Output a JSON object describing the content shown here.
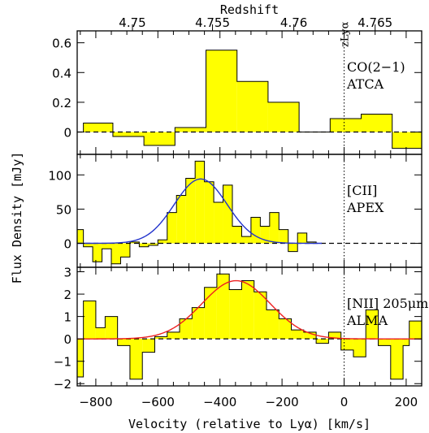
{
  "chart_data": {
    "type": "histogram-stack",
    "ylabel": "Flux Density [mJy]",
    "xlabel": "Velocity (relative to Lyα) [km/s]",
    "top_axis": {
      "label": "Redshift",
      "tick_labels": [
        "4.75",
        "4.755",
        "4.76",
        "4.765"
      ],
      "tick_velocity": [
        -682,
        -424,
        -162,
        100
      ],
      "marker_label": "zLyα",
      "marker_velocity": 0
    },
    "xlim": [
      -860,
      250
    ],
    "x_ticks": [
      -800,
      -600,
      -400,
      -200,
      0,
      200
    ],
    "x_tick_labels": [
      "−800",
      "−600",
      "−400",
      "−200",
      "0",
      "200"
    ],
    "panels": [
      {
        "line": "CO(2−1)",
        "instrument": "ATCA",
        "ylim": [
          -0.15,
          0.68
        ],
        "y_ticks": [
          0,
          0.2,
          0.4,
          0.6
        ],
        "y_tick_labels": [
          "0",
          "0.2",
          "0.4",
          "0.6"
        ],
        "fill_color": "#ffff00",
        "bins": [
          {
            "x0": -860,
            "x1": -840,
            "y": 0.0
          },
          {
            "x0": -840,
            "x1": -745,
            "y": 0.06
          },
          {
            "x0": -745,
            "x1": -645,
            "y": -0.03
          },
          {
            "x0": -645,
            "x1": -545,
            "y": -0.09
          },
          {
            "x0": -545,
            "x1": -445,
            "y": 0.03
          },
          {
            "x0": -445,
            "x1": -345,
            "y": 0.55
          },
          {
            "x0": -345,
            "x1": -245,
            "y": 0.34
          },
          {
            "x0": -245,
            "x1": -145,
            "y": 0.2
          },
          {
            "x0": -145,
            "x1": -45,
            "y": 0.0
          },
          {
            "x0": -45,
            "x1": 55,
            "y": 0.09
          },
          {
            "x0": 55,
            "x1": 155,
            "y": 0.12
          },
          {
            "x0": 155,
            "x1": 250,
            "y": -0.11
          }
        ]
      },
      {
        "line": "[CII]",
        "instrument": "APEX",
        "ylim": [
          -35,
          130
        ],
        "y_ticks": [
          0,
          50,
          100
        ],
        "y_tick_labels": [
          "0",
          "50",
          "100"
        ],
        "fill_color": "#ffff00",
        "fit_color": "#2233cc",
        "fit": {
          "amplitude": 94,
          "center": -462,
          "sigma": 85,
          "x_range": [
            -860,
            -70
          ]
        },
        "bins": [
          {
            "x0": -860,
            "x1": -840,
            "y": 20
          },
          {
            "x0": -840,
            "x1": -810,
            "y": -5
          },
          {
            "x0": -810,
            "x1": -780,
            "y": -27
          },
          {
            "x0": -780,
            "x1": -750,
            "y": -8
          },
          {
            "x0": -750,
            "x1": -720,
            "y": -30
          },
          {
            "x0": -720,
            "x1": -690,
            "y": -20
          },
          {
            "x0": -690,
            "x1": -660,
            "y": 2
          },
          {
            "x0": -660,
            "x1": -630,
            "y": -5
          },
          {
            "x0": -630,
            "x1": -600,
            "y": -3
          },
          {
            "x0": -600,
            "x1": -570,
            "y": 5
          },
          {
            "x0": -570,
            "x1": -540,
            "y": 45
          },
          {
            "x0": -540,
            "x1": -510,
            "y": 70
          },
          {
            "x0": -510,
            "x1": -480,
            "y": 95
          },
          {
            "x0": -480,
            "x1": -450,
            "y": 120
          },
          {
            "x0": -450,
            "x1": -420,
            "y": 90
          },
          {
            "x0": -420,
            "x1": -390,
            "y": 60
          },
          {
            "x0": -390,
            "x1": -360,
            "y": 85
          },
          {
            "x0": -360,
            "x1": -330,
            "y": 25
          },
          {
            "x0": -330,
            "x1": -300,
            "y": 10
          },
          {
            "x0": -300,
            "x1": -270,
            "y": 38
          },
          {
            "x0": -270,
            "x1": -240,
            "y": 25
          },
          {
            "x0": -240,
            "x1": -210,
            "y": 45
          },
          {
            "x0": -210,
            "x1": -180,
            "y": 20
          },
          {
            "x0": -180,
            "x1": -150,
            "y": -12
          },
          {
            "x0": -150,
            "x1": -120,
            "y": 15
          },
          {
            "x0": -120,
            "x1": -90,
            "y": 2
          },
          {
            "x0": -90,
            "x1": -60,
            "y": 0
          }
        ]
      },
      {
        "line": "[NII] 205μm",
        "instrument": "ALMA",
        "ylim": [
          -2.1,
          3.2
        ],
        "y_ticks": [
          -2,
          -1,
          0,
          1,
          2,
          3
        ],
        "y_tick_labels": [
          "−2",
          "−1",
          "0",
          "1",
          "2",
          "3"
        ],
        "fill_color": "#ffff00",
        "fit_color": "#ee2020",
        "fit": {
          "amplitude": 2.6,
          "center": -348,
          "sigma": 110,
          "x_range": [
            -860,
            250
          ]
        },
        "bins": [
          {
            "x0": -860,
            "x1": -840,
            "y": -1.7
          },
          {
            "x0": -840,
            "x1": -800,
            "y": 1.7
          },
          {
            "x0": -800,
            "x1": -770,
            "y": 0.5
          },
          {
            "x0": -770,
            "x1": -730,
            "y": 1.0
          },
          {
            "x0": -730,
            "x1": -690,
            "y": -0.3
          },
          {
            "x0": -690,
            "x1": -650,
            "y": -1.8
          },
          {
            "x0": -650,
            "x1": -610,
            "y": -0.6
          },
          {
            "x0": -610,
            "x1": -570,
            "y": 0.1
          },
          {
            "x0": -570,
            "x1": -530,
            "y": 0.3
          },
          {
            "x0": -530,
            "x1": -490,
            "y": 0.9
          },
          {
            "x0": -490,
            "x1": -450,
            "y": 1.4
          },
          {
            "x0": -450,
            "x1": -410,
            "y": 2.3
          },
          {
            "x0": -410,
            "x1": -370,
            "y": 2.9
          },
          {
            "x0": -370,
            "x1": -330,
            "y": 2.2
          },
          {
            "x0": -330,
            "x1": -290,
            "y": 2.6
          },
          {
            "x0": -290,
            "x1": -250,
            "y": 2.1
          },
          {
            "x0": -250,
            "x1": -210,
            "y": 1.3
          },
          {
            "x0": -210,
            "x1": -170,
            "y": 0.9
          },
          {
            "x0": -170,
            "x1": -130,
            "y": 0.4
          },
          {
            "x0": -130,
            "x1": -90,
            "y": 0.3
          },
          {
            "x0": -90,
            "x1": -50,
            "y": -0.2
          },
          {
            "x0": -50,
            "x1": -10,
            "y": 0.3
          },
          {
            "x0": -10,
            "x1": 30,
            "y": -0.5
          },
          {
            "x0": 30,
            "x1": 70,
            "y": -0.8
          },
          {
            "x0": 70,
            "x1": 110,
            "y": 1.3
          },
          {
            "x0": 110,
            "x1": 150,
            "y": -0.3
          },
          {
            "x0": 150,
            "x1": 190,
            "y": -1.8
          },
          {
            "x0": 190,
            "x1": 210,
            "y": -0.3
          },
          {
            "x0": 210,
            "x1": 250,
            "y": 0.8
          }
        ]
      }
    ]
  }
}
